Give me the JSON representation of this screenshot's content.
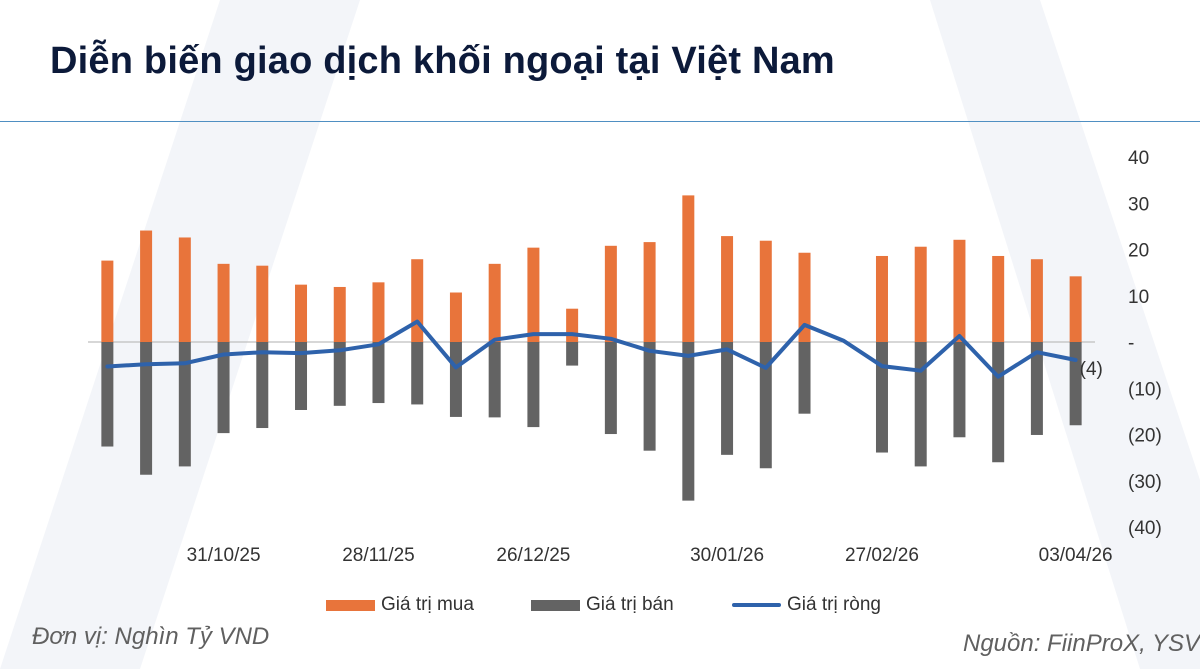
{
  "page": {
    "title": "Diễn biến giao dịch khối ngoại tại Việt Nam",
    "unit_note": "Đơn vị: Nghìn Tỷ VND",
    "source_note": "Nguồn: FiinProX, YSV"
  },
  "colors": {
    "buy": "#e8743b",
    "sell": "#636363",
    "net": "#2e62ab",
    "title": "#0c1a3a",
    "rule": "#4f8fc2",
    "zero_line": "#bfbfbf"
  },
  "chart_data": {
    "type": "bar",
    "title": "Diễn biến giao dịch khối ngoại tại Việt Nam",
    "xlabel": "",
    "ylabel": "",
    "ylim": [
      -40,
      40
    ],
    "y_ticks": [
      40,
      30,
      20,
      10,
      0,
      -10,
      -20,
      -30,
      -40
    ],
    "y_tick_labels": [
      "40",
      "30",
      "20",
      "10",
      "-",
      "(10)",
      "(20)",
      "(30)",
      "(40)"
    ],
    "y_axis_side": "right",
    "grid": false,
    "legend_position": "bottom",
    "x_tick_labels": [
      {
        "index": 3,
        "label": "31/10/25"
      },
      {
        "index": 7,
        "label": "28/11/25"
      },
      {
        "index": 11,
        "label": "26/12/25"
      },
      {
        "index": 16,
        "label": "30/01/26"
      },
      {
        "index": 20,
        "label": "27/02/26"
      },
      {
        "index": 25,
        "label": "03/04/26"
      }
    ],
    "series": [
      {
        "name": "Giá trị mua",
        "type": "bar",
        "values": [
          17.6,
          24.1,
          22.6,
          16.9,
          16.5,
          12.4,
          11.9,
          12.9,
          17.9,
          10.7,
          16.9,
          20.4,
          7.2,
          20.8,
          21.6,
          31.7,
          22.9,
          21.9,
          19.3,
          null,
          18.6,
          20.6,
          22.1,
          18.6,
          17.9,
          14.2
        ]
      },
      {
        "name": "Giá trị bán",
        "type": "bar",
        "values": [
          -22.6,
          -28.7,
          -26.9,
          -19.7,
          -18.6,
          -14.7,
          -13.8,
          -13.2,
          -13.5,
          -16.2,
          -16.3,
          -18.4,
          -5.1,
          -19.9,
          -23.5,
          -34.3,
          -24.4,
          -27.3,
          -15.5,
          null,
          -23.9,
          -26.9,
          -20.6,
          -26.0,
          -20.1,
          -18.0
        ]
      },
      {
        "name": "Giá trị ròng",
        "type": "line",
        "values": [
          -5.3,
          -4.8,
          -4.6,
          -2.7,
          -2.2,
          -2.4,
          -1.8,
          -0.5,
          4.4,
          -5.5,
          0.5,
          1.7,
          1.7,
          0.7,
          -1.9,
          -3.0,
          -1.6,
          -5.6,
          3.7,
          0.3,
          -5.2,
          -6.2,
          1.3,
          -7.5,
          -2.2,
          -3.9
        ]
      }
    ],
    "annotations": [
      {
        "index": 25,
        "series": "Giá trị ròng",
        "text": "(4)"
      }
    ]
  }
}
